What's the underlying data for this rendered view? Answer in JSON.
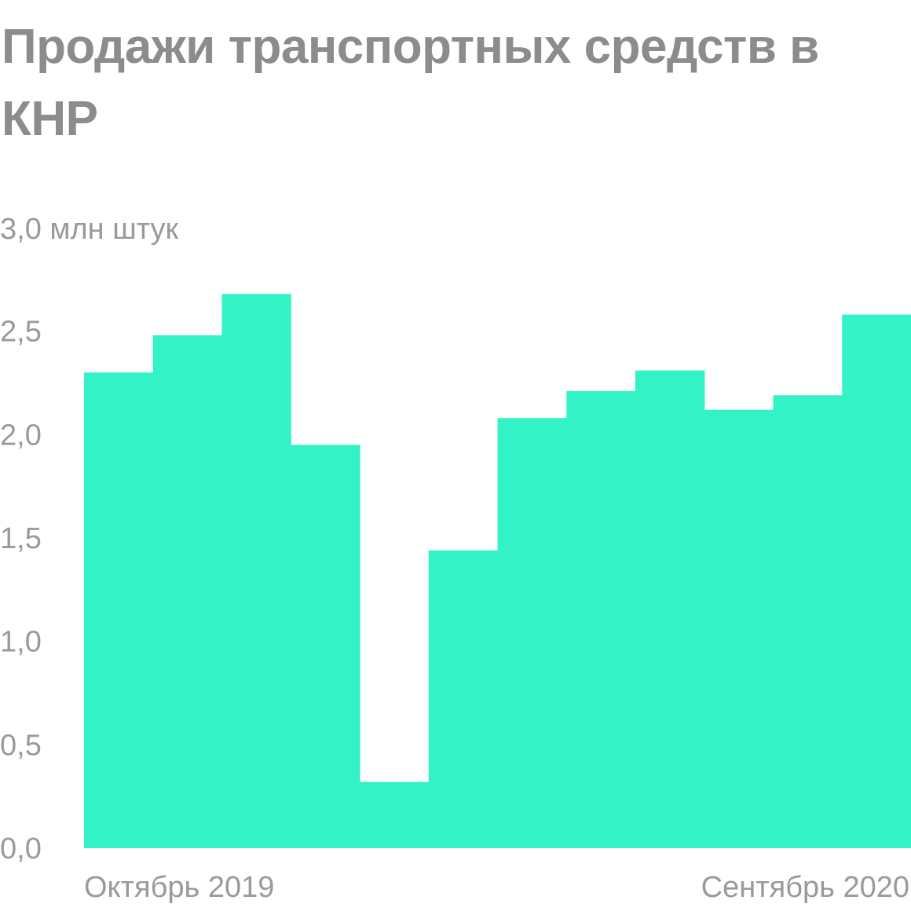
{
  "title": "Продажи транспортных средств в КНР",
  "chart_data": {
    "type": "bar",
    "title": "Продажи транспортных средств в КНР",
    "unit_label": "3,0 млн штук",
    "ylim": [
      0,
      3.0
    ],
    "y_ticks": [
      "0,0",
      "0,5",
      "1,0",
      "1,5",
      "2,0",
      "2,5"
    ],
    "y_tick_values": [
      0,
      0.5,
      1.0,
      1.5,
      2.0,
      2.5
    ],
    "x_start_label": "Октябрь 2019",
    "x_end_label": "Сентябрь 2020",
    "categories": [
      "Октябрь 2019",
      "",
      "",
      "",
      "",
      "",
      "",
      "",
      "",
      "",
      "",
      "Сентябрь 2020"
    ],
    "values": [
      2.3,
      2.48,
      2.68,
      1.95,
      0.32,
      1.44,
      2.08,
      2.21,
      2.31,
      2.12,
      2.19,
      2.58
    ],
    "bar_color": "#33f2c5",
    "grid": false
  }
}
